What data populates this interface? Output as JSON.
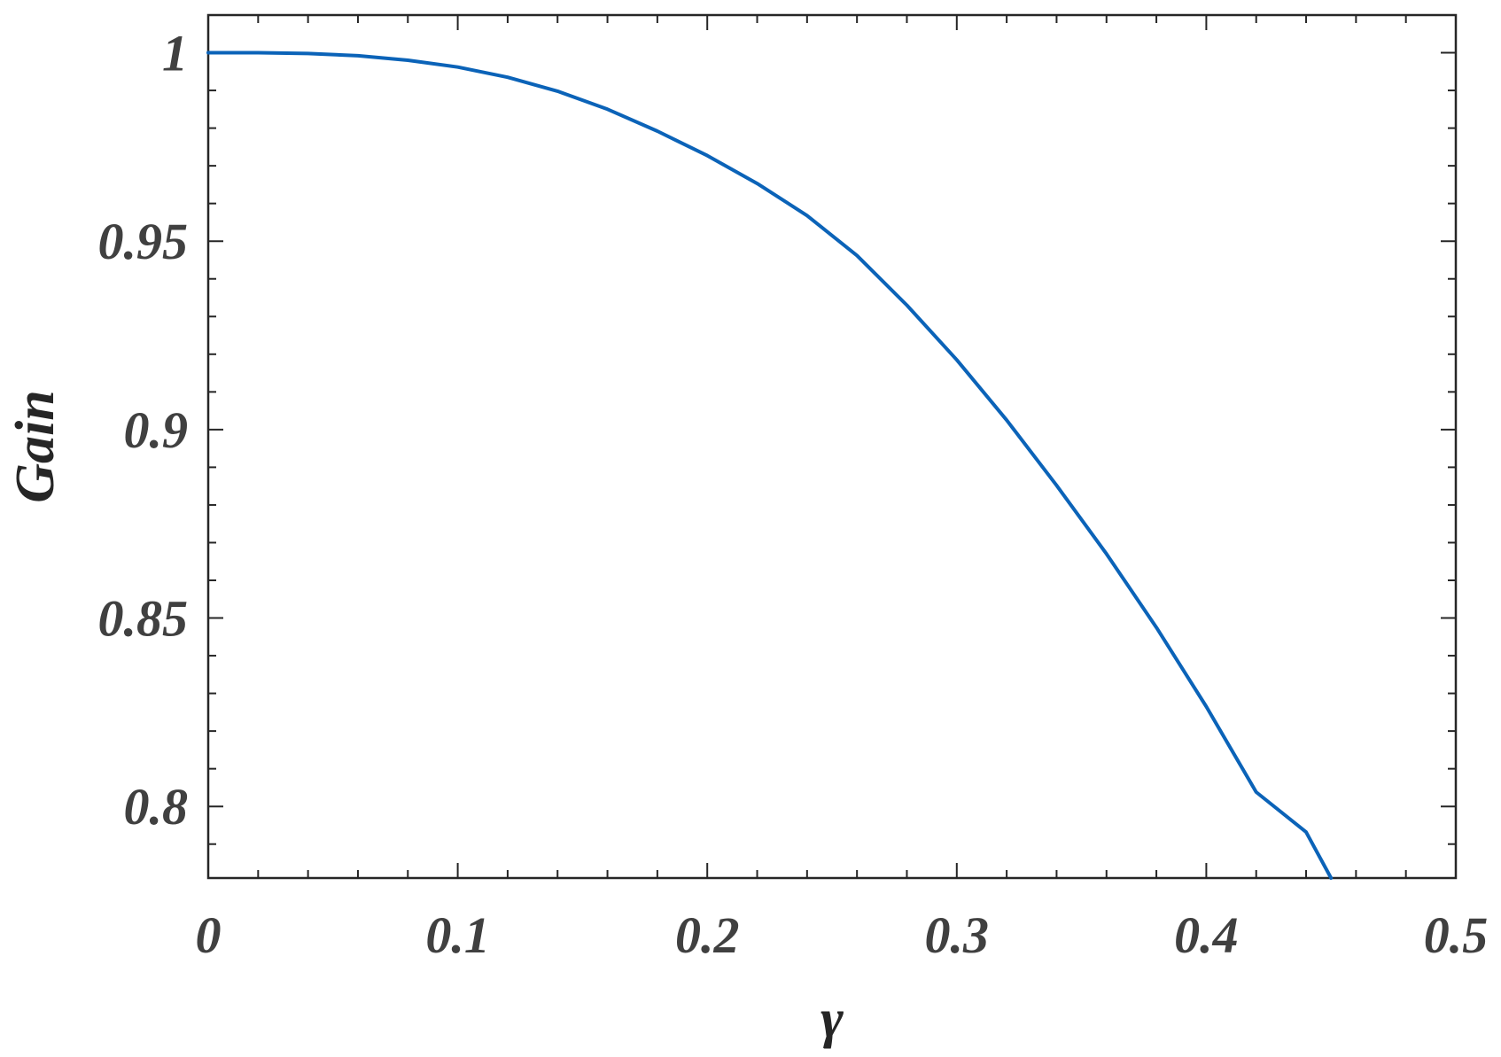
{
  "chart_data": {
    "type": "line",
    "xlabel": "γ",
    "ylabel": "Gain",
    "xlim": [
      0,
      0.5
    ],
    "ylim": [
      0.781,
      1.01
    ],
    "x_ticks": [
      0,
      0.1,
      0.2,
      0.3,
      0.4,
      0.5
    ],
    "x_tick_labels": [
      "0",
      "0.1",
      "0.2",
      "0.3",
      "0.4",
      "0.5"
    ],
    "x_minor_step": 0.02,
    "y_ticks": [
      0.8,
      0.85,
      0.9,
      0.95,
      1
    ],
    "y_tick_labels": [
      "0.8",
      "0.85",
      "0.9",
      "0.95",
      "1"
    ],
    "y_minor_step": 0.01,
    "grid": false,
    "legend": "none",
    "series": [
      {
        "color": "#0b63b8",
        "x": [
          0,
          0.02,
          0.04,
          0.06,
          0.08,
          0.1,
          0.12,
          0.14,
          0.16,
          0.18,
          0.2,
          0.22,
          0.24,
          0.26,
          0.28,
          0.3,
          0.32,
          0.34,
          0.36,
          0.38,
          0.4,
          0.42,
          0.44,
          0.45
        ],
        "y": [
          1.0,
          1.0,
          0.9998,
          0.9992,
          0.998,
          0.9962,
          0.9935,
          0.9898,
          0.985,
          0.9792,
          0.9727,
          0.9653,
          0.9568,
          0.9462,
          0.933,
          0.9185,
          0.9025,
          0.8852,
          0.867,
          0.8475,
          0.8265,
          0.8038,
          0.7932,
          0.781
        ]
      }
    ]
  }
}
